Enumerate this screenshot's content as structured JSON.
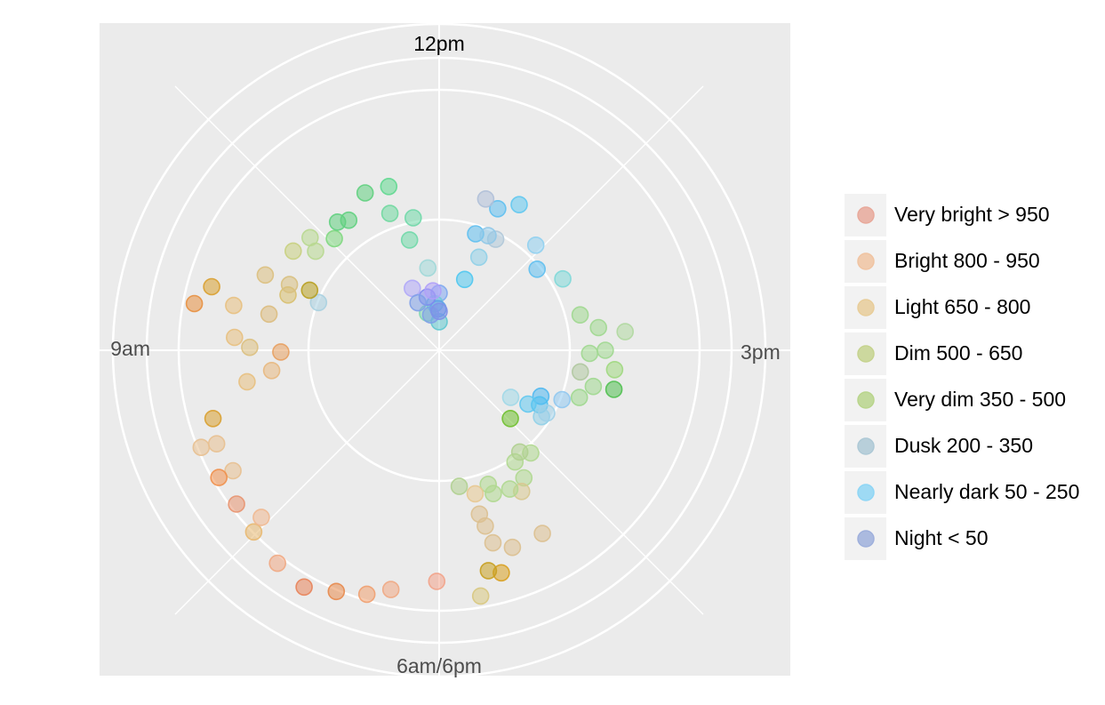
{
  "chart_data": {
    "type": "scatter",
    "coordinate_system": "polar",
    "angle_axis": {
      "labels": [
        "12pm",
        "3pm",
        "6am/6pm",
        "9am"
      ],
      "label_hours": [
        12,
        15,
        18,
        9
      ],
      "range_hours": [
        6,
        18
      ],
      "note_direction": "clockwise from top"
    },
    "radius_axis": {
      "visible_labels": false
    },
    "grid": true,
    "legend_position": "right",
    "legend": [
      {
        "name": "Very bright > 950",
        "color": "#e8a99b"
      },
      {
        "name": "Bright 800 - 950",
        "color": "#f0c4a2"
      },
      {
        "name": "Light 650 - 800",
        "color": "#e8cd9a"
      },
      {
        "name": "Dim 500 - 650",
        "color": "#c6d38f"
      },
      {
        "name": "Very dim 350 - 500",
        "color": "#b9d58c"
      },
      {
        "name": "Dusk 200 - 350",
        "color": "#aec9d6"
      },
      {
        "name": "Nearly dark 50 - 250",
        "color": "#8fd6f5"
      },
      {
        "name": "Night < 50",
        "color": "#9fb0dc"
      }
    ],
    "points": [
      {
        "hour": 12.02,
        "r": 0.89,
        "color": "#f2a38a"
      },
      {
        "hour": 12.38,
        "r": 0.94,
        "color": "#f0a883"
      },
      {
        "hour": 12.55,
        "r": 0.98,
        "color": "#f0a070"
      },
      {
        "hour": 12.77,
        "r": 1.01,
        "color": "#e88a4d"
      },
      {
        "hour": 12.99,
        "r": 1.05,
        "color": "#e8835a"
      },
      {
        "hour": 13.24,
        "r": 1.03,
        "color": "#f0a883"
      },
      {
        "hour": 13.52,
        "r": 1.0,
        "color": "#e8b870"
      },
      {
        "hour": 13.56,
        "r": 0.94,
        "color": "#f0b890"
      },
      {
        "hour": 13.76,
        "r": 0.98,
        "color": "#e89470"
      },
      {
        "hour": 13.99,
        "r": 0.92,
        "color": "#e8c090"
      },
      {
        "hour": 14.0,
        "r": 0.98,
        "color": "#f0904c"
      },
      {
        "hour": 14.24,
        "r": 0.93,
        "color": "#e8c090"
      },
      {
        "hour": 14.26,
        "r": 0.99,
        "color": "#e8c090"
      },
      {
        "hour": 14.44,
        "r": 0.91,
        "color": "#d9a030"
      },
      {
        "hour": 14.69,
        "r": 0.75,
        "color": "#e8c080"
      },
      {
        "hour": 14.77,
        "r": 0.65,
        "color": "#e8b880"
      },
      {
        "hour": 14.98,
        "r": 0.61,
        "color": "#e8a060"
      },
      {
        "hour": 15.03,
        "r": 0.73,
        "color": "#dcc080"
      },
      {
        "hour": 15.12,
        "r": 0.79,
        "color": "#e8c080"
      },
      {
        "hour": 15.36,
        "r": 0.96,
        "color": "#e89040"
      },
      {
        "hour": 15.52,
        "r": 0.91,
        "color": "#d9a030"
      },
      {
        "hour": 15.41,
        "r": 0.81,
        "color": "#e8c080"
      },
      {
        "hour": 15.4,
        "r": 0.67,
        "color": "#dcbc80"
      },
      {
        "hour": 15.67,
        "r": 0.62,
        "color": "#d8c070"
      },
      {
        "hour": 15.72,
        "r": 0.5,
        "color": "#a8d0e0"
      },
      {
        "hour": 15.79,
        "r": 0.63,
        "color": "#d8c080"
      },
      {
        "hour": 15.83,
        "r": 0.55,
        "color": "#b8a020"
      },
      {
        "hour": 15.78,
        "r": 0.73,
        "color": "#dcc080"
      },
      {
        "hour": 16.14,
        "r": 0.68,
        "color": "#c8d080"
      },
      {
        "hour": 16.29,
        "r": 0.61,
        "color": "#b8d890"
      },
      {
        "hour": 16.37,
        "r": 0.66,
        "color": "#b8d890"
      },
      {
        "hour": 16.56,
        "r": 0.59,
        "color": "#80d880"
      },
      {
        "hour": 16.72,
        "r": 0.63,
        "color": "#60d080"
      },
      {
        "hour": 16.84,
        "r": 0.61,
        "color": "#60d080"
      },
      {
        "hour": 17.16,
        "r": 0.67,
        "color": "#60d080"
      },
      {
        "hour": 17.34,
        "r": 0.56,
        "color": "#70d8a0"
      },
      {
        "hour": 17.43,
        "r": 0.66,
        "color": "#60d890"
      },
      {
        "hour": 17.5,
        "r": 0.44,
        "color": "#70d8a8"
      },
      {
        "hour": 17.63,
        "r": 0.52,
        "color": "#70d8a8"
      },
      {
        "hour": 17.74,
        "r": 0.32,
        "color": "#a0d8d8"
      },
      {
        "hour": 18.0,
        "r": 0.22,
        "color": "#80a8f0"
      },
      {
        "hour": 17.42,
        "r": 0.15,
        "color": "#80d8b0"
      },
      {
        "hour": 17.82,
        "r": 0.18,
        "color": "#70c8d8"
      },
      {
        "hour": 18.0,
        "r": 0.11,
        "color": "#60c8d0"
      },
      {
        "hour": 17.95,
        "r": 0.16,
        "color": "#60a0e8"
      },
      {
        "hour": 17.55,
        "r": 0.14,
        "color": "#80a0e8"
      },
      {
        "hour": 18.0,
        "r": 0.15,
        "color": "#8090e8"
      },
      {
        "hour": 17.22,
        "r": 0.26,
        "color": "#b0a8f8"
      },
      {
        "hour": 17.58,
        "r": 0.21,
        "color": "#8088f0"
      },
      {
        "hour": 17.8,
        "r": 0.23,
        "color": "#b0a0f8"
      },
      {
        "hour": 17.2,
        "r": 0.2,
        "color": "#80a0e8"
      },
      {
        "hour": 6.9,
        "r": 0.48,
        "color": "#b0c8d8"
      },
      {
        "hour": 6.77,
        "r": 0.39,
        "color": "#90d0e8"
      },
      {
        "hour": 6.66,
        "r": 0.29,
        "color": "#50c8f0"
      },
      {
        "hour": 6.58,
        "r": 0.47,
        "color": "#60c0f0"
      },
      {
        "hour": 6.96,
        "r": 0.64,
        "color": "#60c8f0"
      },
      {
        "hour": 6.77,
        "r": 0.48,
        "color": "#90c8e8"
      },
      {
        "hour": 6.75,
        "r": 0.59,
        "color": "#60c0f0"
      },
      {
        "hour": 6.57,
        "r": 0.61,
        "color": "#b0c0d8"
      },
      {
        "hour": 7.42,
        "r": 0.55,
        "color": "#90d0f0"
      },
      {
        "hour": 7.68,
        "r": 0.49,
        "color": "#60c0f0"
      },
      {
        "hour": 8.0,
        "r": 0.55,
        "color": "#80d8d8"
      },
      {
        "hour": 8.53,
        "r": 0.56,
        "color": "#a0d890"
      },
      {
        "hour": 8.73,
        "r": 0.62,
        "color": "#a0d890"
      },
      {
        "hour": 8.81,
        "r": 0.72,
        "color": "#b0d8a0"
      },
      {
        "hour": 9.0,
        "r": 0.64,
        "color": "#a0d890"
      },
      {
        "hour": 9.04,
        "r": 0.58,
        "color": "#a0d890"
      },
      {
        "hour": 9.21,
        "r": 0.68,
        "color": "#a0d880"
      },
      {
        "hour": 9.29,
        "r": 0.55,
        "color": "#b0c8a0"
      },
      {
        "hour": 9.42,
        "r": 0.69,
        "color": "#50c050"
      },
      {
        "hour": 9.44,
        "r": 0.61,
        "color": "#a0d890"
      },
      {
        "hour": 9.62,
        "r": 0.57,
        "color": "#a0d890"
      },
      {
        "hour": 9.73,
        "r": 0.51,
        "color": "#90c8f0"
      },
      {
        "hour": 9.81,
        "r": 0.43,
        "color": "#50b8f0"
      },
      {
        "hour": 9.95,
        "r": 0.44,
        "color": "#50c0f0"
      },
      {
        "hour": 10.11,
        "r": 0.33,
        "color": "#a0d8e8"
      },
      {
        "hour": 10.04,
        "r": 0.4,
        "color": "#60c8f0"
      },
      {
        "hour": 10.1,
        "r": 0.47,
        "color": "#90d0e8"
      },
      {
        "hour": 10.01,
        "r": 0.48,
        "color": "#a0d0e8"
      },
      {
        "hour": 10.46,
        "r": 0.38,
        "color": "#70c030"
      },
      {
        "hour": 10.61,
        "r": 0.53,
        "color": "#b0d890"
      },
      {
        "hour": 10.86,
        "r": 0.52,
        "color": "#b0d890"
      },
      {
        "hour": 10.72,
        "r": 0.5,
        "color": "#b0d090"
      },
      {
        "hour": 10.88,
        "r": 0.59,
        "color": "#b0d890"
      },
      {
        "hour": 10.99,
        "r": 0.63,
        "color": "#d8c890"
      },
      {
        "hour": 11.1,
        "r": 0.6,
        "color": "#b0d890"
      },
      {
        "hour": 11.31,
        "r": 0.59,
        "color": "#b0d890"
      },
      {
        "hour": 11.33,
        "r": 0.55,
        "color": "#b0d890"
      },
      {
        "hour": 11.53,
        "r": 0.57,
        "color": "#e8c890"
      },
      {
        "hour": 11.72,
        "r": 0.53,
        "color": "#b0d090"
      },
      {
        "hour": 11.02,
        "r": 0.81,
        "color": "#dcc090"
      },
      {
        "hour": 11.32,
        "r": 0.81,
        "color": "#dcc090"
      },
      {
        "hour": 11.48,
        "r": 0.77,
        "color": "#dcc090"
      },
      {
        "hour": 11.51,
        "r": 0.7,
        "color": "#dcc090"
      },
      {
        "hour": 11.54,
        "r": 0.65,
        "color": "#dcc090"
      },
      {
        "hour": 11.48,
        "r": 0.89,
        "color": "#d8a020"
      },
      {
        "hour": 11.58,
        "r": 0.87,
        "color": "#c8a020"
      },
      {
        "hour": 11.68,
        "r": 0.96,
        "color": "#d8c880"
      }
    ]
  }
}
